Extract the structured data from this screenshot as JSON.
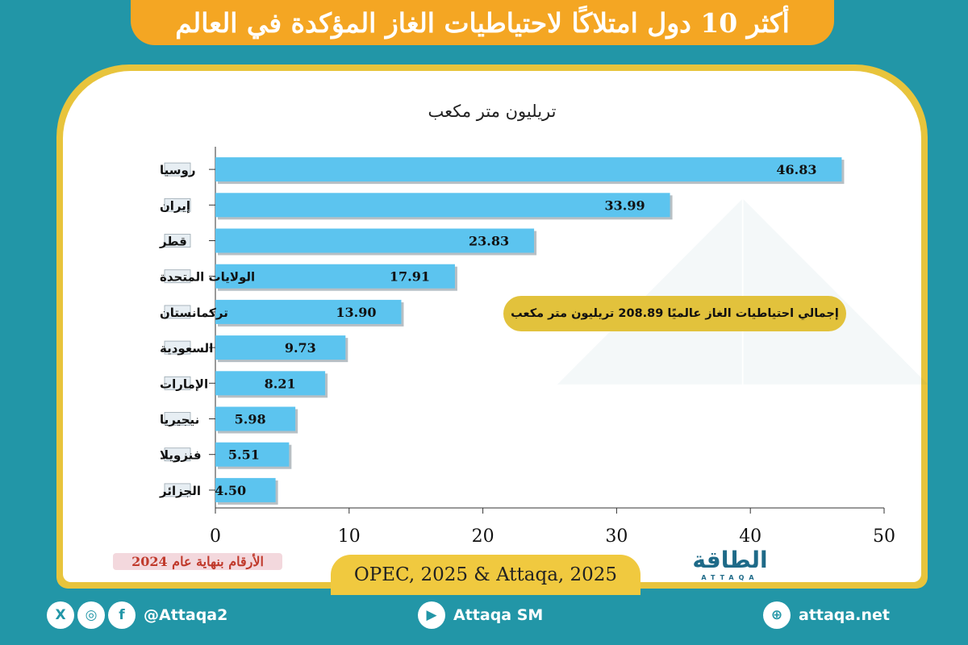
{
  "title": "أكثر 10 دول امتلاكًا لاحتياطيات الغاز المؤكدة في العالم",
  "chart_data": {
    "type": "bar",
    "orientation": "horizontal",
    "unit_label": "تريليون متر مكعب",
    "categories": [
      "روسيا",
      "إيران",
      "قطر",
      "الولايات المتحدة",
      "تركمانستان",
      "السعودية",
      "الإمارات",
      "نيجيريا",
      "فنزويلا",
      "الجزائر"
    ],
    "values": [
      46.83,
      33.99,
      23.83,
      17.91,
      13.9,
      9.73,
      8.21,
      5.98,
      5.51,
      4.5
    ],
    "value_labels": [
      "46.83",
      "33.99",
      "23.83",
      "17.91",
      "13.90",
      "9.73",
      "8.21",
      "5.98",
      "5.51",
      "4.50"
    ],
    "xlim": [
      0,
      50
    ],
    "xticks": [
      0,
      10,
      20,
      30,
      40,
      50
    ],
    "bar_color": "#5cc4ef",
    "grid": false
  },
  "callout": "إجمالي احتياطيات الغاز عالميًا 208.89 تريليون متر مكعب",
  "year_note": "الأرقام بنهاية عام 2024",
  "source": "OPEC, 2025 & Attaqa, 2025",
  "logo": {
    "name": "الطاقة",
    "sub": "ATTAQA"
  },
  "footer": {
    "social_handle": "@Attaqa2",
    "youtube": "Attaqa SM",
    "website": "attaqa.net"
  },
  "colors": {
    "background": "#2296a7",
    "title_bg": "#f4a623",
    "frame": "#e8c43c",
    "bar": "#5cc4ef"
  }
}
